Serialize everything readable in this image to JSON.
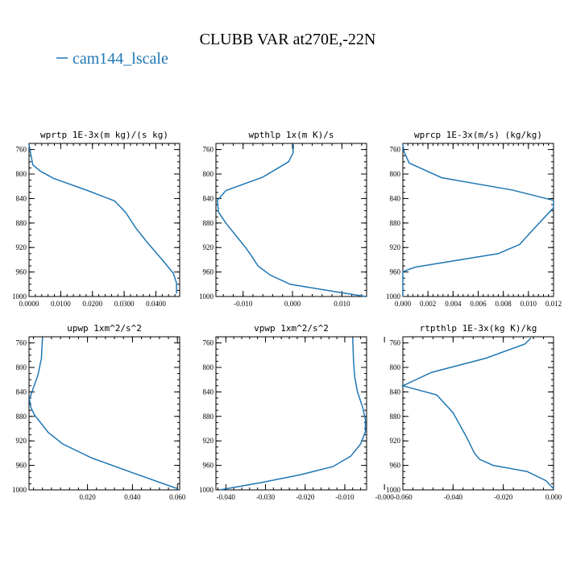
{
  "figure": {
    "title": "CLUBB VAR at270E,-22N",
    "legend": [
      {
        "name": "cam144_lscale",
        "color": "#1f77b4"
      }
    ]
  },
  "chart_data": [
    {
      "type": "line",
      "title": "wprtp  1E-3x(m kg)/(s kg)",
      "xlim": [
        0.0,
        0.0475
      ],
      "ylim": [
        1000,
        750
      ],
      "xticks": [
        0.0,
        0.01,
        0.02,
        0.03,
        0.04
      ],
      "xtick_labels": [
        "0.0000",
        "0.0100",
        "0.0200",
        "0.0300",
        "0.0400"
      ],
      "yticks": [
        760,
        800,
        840,
        880,
        920,
        960,
        1000
      ],
      "series": [
        {
          "name": "cam144_lscale",
          "x": [
            0.0,
            0.0005,
            0.0012,
            0.0035,
            0.0077,
            0.0185,
            0.027,
            0.0305,
            0.0335,
            0.037,
            0.0415,
            0.0455,
            0.0465,
            0.0465
          ],
          "y": [
            752,
            766,
            785,
            795,
            807,
            827,
            844,
            863,
            887,
            910,
            937,
            962,
            978,
            995
          ]
        }
      ]
    },
    {
      "type": "line",
      "title": "wpthlp  1x(m K)/s",
      "xlim": [
        -0.0155,
        0.015
      ],
      "ylim": [
        1000,
        750
      ],
      "xticks": [
        -0.01,
        0.0,
        0.01
      ],
      "xtick_labels": [
        "-0.010",
        "0.000",
        "0.010"
      ],
      "yticks": [
        760,
        800,
        840,
        880,
        920,
        960,
        1000
      ],
      "series": [
        {
          "name": "cam144_lscale",
          "x": [
            0.0002,
            0.0001,
            -0.0008,
            -0.006,
            -0.0135,
            -0.0152,
            -0.015,
            -0.0135,
            -0.0115,
            -0.0095,
            -0.0082,
            -0.007,
            -0.0045,
            -0.0005,
            0.0085,
            0.0148
          ],
          "y": [
            752,
            766,
            780,
            805,
            827,
            843,
            862,
            880,
            900,
            920,
            935,
            950,
            965,
            980,
            992,
            1000
          ]
        }
      ]
    },
    {
      "type": "line",
      "title": "wprcp  1E-3x(m/s) (kg/kg)",
      "xlim": [
        0.0,
        0.012
      ],
      "ylim": [
        1000,
        750
      ],
      "xticks": [
        0.0,
        0.002,
        0.004,
        0.006,
        0.008,
        0.01,
        0.012
      ],
      "xtick_labels": [
        "0.000",
        "0.002",
        "0.004",
        "0.006",
        "0.008",
        "0.010",
        "0.012"
      ],
      "yticks": [
        760,
        800,
        840,
        880,
        920,
        960,
        1000
      ],
      "series": [
        {
          "name": "cam144_lscale",
          "x": [
            0.0,
            0.0001,
            0.0005,
            0.0031,
            0.0087,
            0.012,
            0.012,
            0.0105,
            0.0093,
            0.0076,
            0.001,
            0.0003,
            0.0,
            0.0
          ],
          "y": [
            752,
            764,
            782,
            806,
            826,
            843,
            855,
            888,
            915,
            930,
            952,
            957,
            960,
            1000
          ]
        }
      ]
    },
    {
      "type": "line",
      "title": "upwp  1xm^2/s^2",
      "xlim": [
        -0.006,
        0.061
      ],
      "ylim": [
        1000,
        750
      ],
      "xticks": [
        0.02,
        0.04,
        0.06
      ],
      "xtick_labels": [
        "0.020",
        "0.040",
        "0.060"
      ],
      "yticks": [
        760,
        800,
        840,
        880,
        920,
        960,
        1000
      ],
      "series": [
        {
          "name": "cam144_lscale",
          "x": [
            0.0,
            -0.0005,
            -0.002,
            -0.0045,
            -0.0058,
            -0.0052,
            -0.0035,
            -0.0005,
            0.0025,
            0.009,
            0.022,
            0.04,
            0.06
          ],
          "y": [
            752,
            785,
            812,
            838,
            852,
            865,
            878,
            892,
            906,
            925,
            948,
            972,
            998
          ]
        }
      ]
    },
    {
      "type": "line",
      "title": "vpwp  1xm^2/s^2",
      "xlim": [
        -0.0425,
        -0.0045
      ],
      "ylim": [
        1000,
        750
      ],
      "xticks": [
        -0.04,
        -0.03,
        -0.02,
        -0.01,
        0.0
      ],
      "xtick_labels": [
        "-0.040",
        "-0.030",
        "-0.020",
        "-0.010",
        "-0.000"
      ],
      "yticks": [
        760,
        800,
        840,
        880,
        920,
        960,
        1000
      ],
      "series": [
        {
          "name": "cam144_lscale",
          "x": [
            -0.008,
            -0.0078,
            -0.0075,
            -0.0068,
            -0.0055,
            -0.0048,
            -0.0048,
            -0.006,
            -0.0085,
            -0.013,
            -0.021,
            -0.031,
            -0.0415
          ],
          "y": [
            752,
            790,
            815,
            840,
            865,
            885,
            905,
            925,
            945,
            962,
            975,
            988,
            1000
          ]
        }
      ]
    },
    {
      "type": "line",
      "title": "rtpthlp  1E-3x(kg K)/kg",
      "xlim": [
        -0.06,
        0.0
      ],
      "ylim": [
        1000,
        750
      ],
      "xticks": [
        -0.06,
        -0.04,
        -0.02,
        0.0
      ],
      "xtick_labels": [
        "-0.060",
        "-0.040",
        "-0.020",
        "0.000"
      ],
      "yticks": [
        760,
        800,
        840,
        880,
        920,
        960,
        1000
      ],
      "series": [
        {
          "name": "cam144_lscale",
          "x": [
            -0.009,
            -0.0115,
            -0.027,
            -0.0485,
            -0.06,
            -0.0465,
            -0.04,
            -0.0345,
            -0.0315,
            -0.0295,
            -0.024,
            -0.0105,
            -0.003,
            0.0
          ],
          "y": [
            752,
            762,
            785,
            808,
            830,
            845,
            874,
            915,
            940,
            950,
            960,
            970,
            985,
            998
          ]
        }
      ]
    }
  ]
}
